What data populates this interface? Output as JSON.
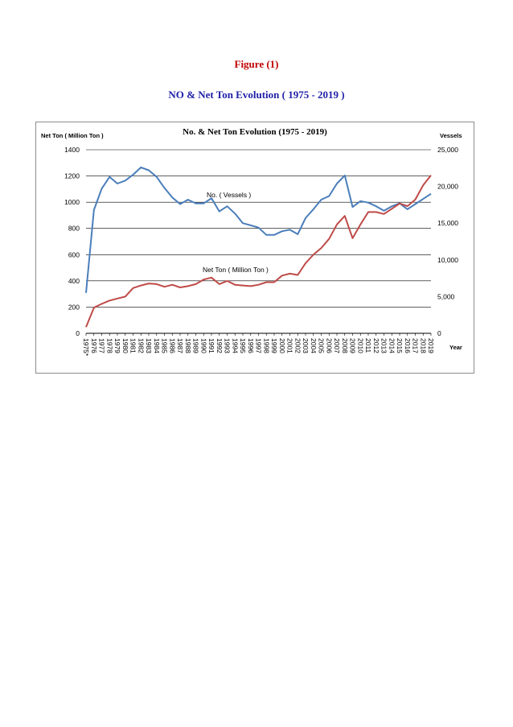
{
  "figure": {
    "label": "Figure (1)",
    "title": "NO & Net Ton Evolution ( 1975 - 2019 )",
    "label_color": "#c00000",
    "title_color": "#1f1fa8"
  },
  "chart_data": {
    "type": "line",
    "title": "No. & Net Ton Evolution (1975 - 2019)",
    "ylabel_left": "Net Ton ( Million Ton )",
    "ylabel_right": "Vessels",
    "xlabel": "Year",
    "ylim_left": [
      0,
      1400
    ],
    "yticks_left": [
      "0",
      "200",
      "400",
      "600",
      "800",
      "1000",
      "1200",
      "1400"
    ],
    "ylim_right": [
      0,
      25000
    ],
    "yticks_right": [
      "0",
      "5,000",
      "10,000",
      "15,000",
      "20,000",
      "25,000"
    ],
    "grid": "horizontal",
    "categories": [
      "1975*",
      "1976",
      "1977",
      "1978",
      "1979",
      "1980",
      "1981",
      "1982",
      "1983",
      "1984",
      "1985",
      "1986",
      "1987",
      "1988",
      "1989",
      "1990",
      "1991",
      "1992",
      "1993",
      "1994",
      "1995",
      "1996",
      "1997",
      "1998",
      "1999",
      "2000",
      "2001",
      "2002",
      "2003",
      "2004",
      "2005",
      "2006",
      "2007",
      "2008",
      "2009",
      "2010",
      "2011",
      "2012",
      "2013",
      "2014",
      "2015",
      "2016",
      "2017",
      "2018",
      "2019"
    ],
    "series": [
      {
        "name": "No. ( Vessels )",
        "axis": "right",
        "color": "#4a7ebb",
        "values": [
          5500,
          16800,
          19700,
          21300,
          20400,
          20800,
          21600,
          22600,
          22200,
          21300,
          19800,
          18500,
          17600,
          18200,
          17700,
          17700,
          18400,
          16600,
          17300,
          16300,
          15000,
          14700,
          14400,
          13400,
          13400,
          13900,
          14100,
          13500,
          15700,
          16900,
          18200,
          18700,
          20400,
          21500,
          17200,
          18000,
          17800,
          17300,
          16700,
          17300,
          17700,
          16900,
          17600,
          18300,
          19000
        ]
      },
      {
        "name": "Net Ton ( Million Ton )",
        "axis": "left",
        "color": "#be4b48",
        "values": [
          48,
          195,
          225,
          250,
          265,
          280,
          345,
          365,
          380,
          375,
          355,
          370,
          350,
          360,
          375,
          410,
          425,
          375,
          400,
          370,
          365,
          360,
          370,
          390,
          390,
          440,
          455,
          445,
          535,
          600,
          650,
          720,
          830,
          895,
          725,
          830,
          925,
          925,
          910,
          950,
          990,
          970,
          1020,
          1130,
          1205
        ]
      }
    ]
  }
}
